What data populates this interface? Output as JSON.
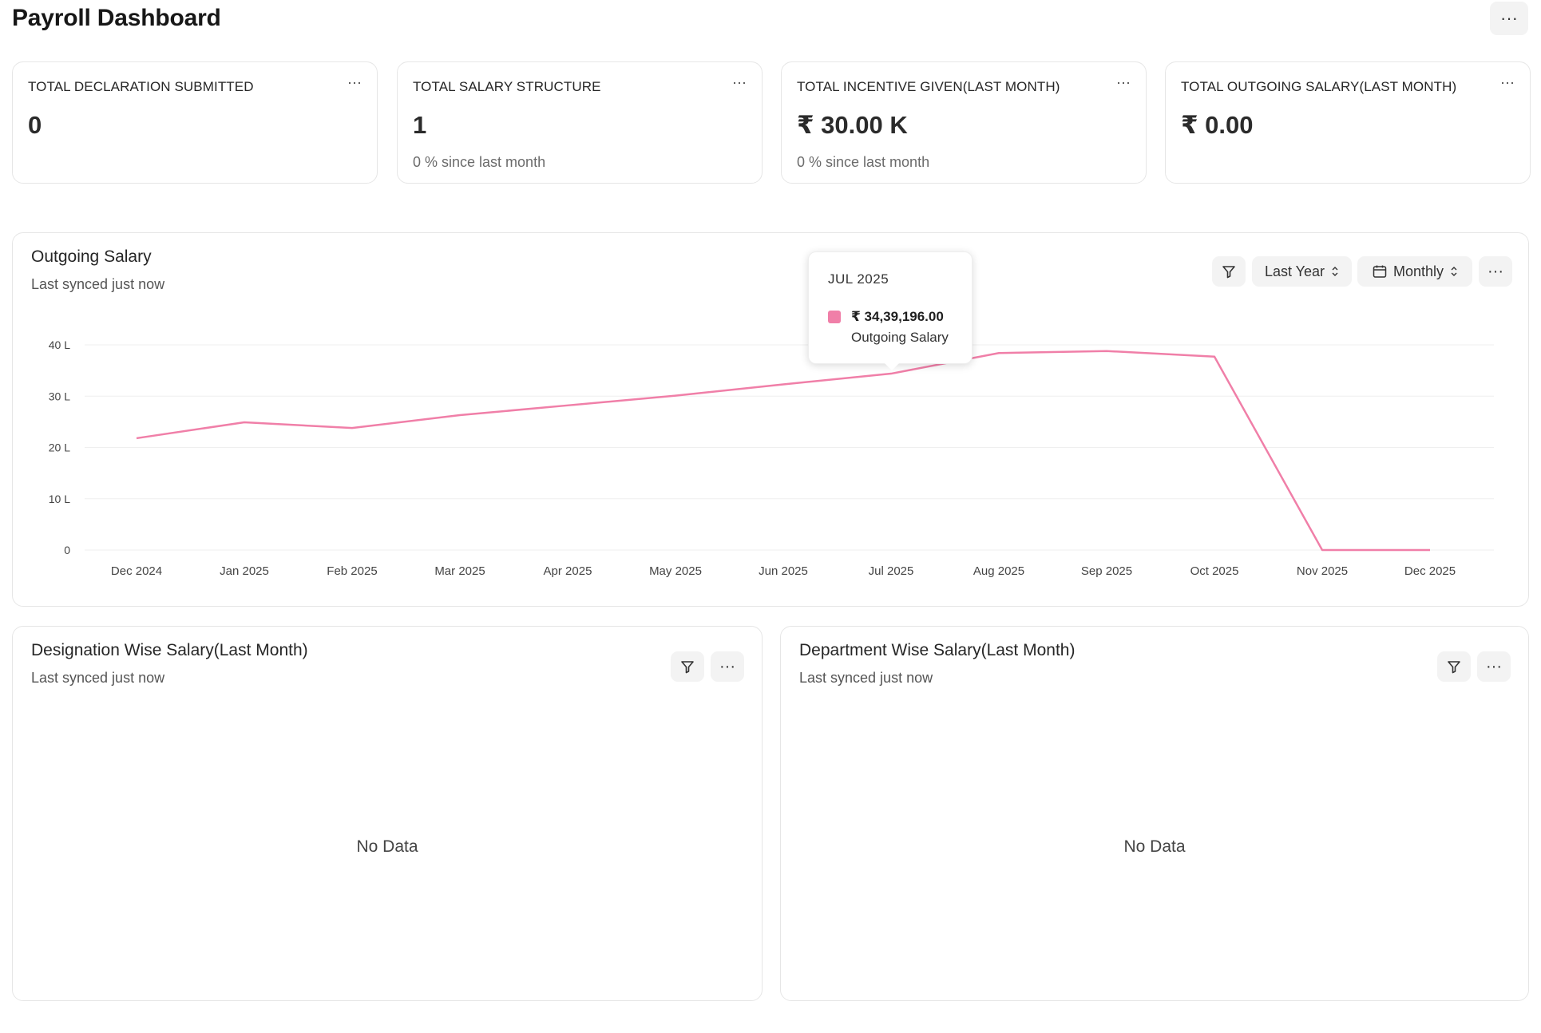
{
  "header": {
    "title": "Payroll Dashboard",
    "menu_label": "···"
  },
  "stats": [
    {
      "label": "TOTAL DECLARATION SUBMITTED",
      "value": "0",
      "sub": ""
    },
    {
      "label": "TOTAL SALARY STRUCTURE",
      "value": "1",
      "sub": "0 % since last month"
    },
    {
      "label": "TOTAL INCENTIVE GIVEN(LAST MONTH)",
      "value": "₹ 30.00 K",
      "sub": "0 % since last month"
    },
    {
      "label": "TOTAL OUTGOING SALARY(LAST MONTH)",
      "value": "₹ 0.00",
      "sub": ""
    }
  ],
  "outgoing": {
    "title": "Outgoing Salary",
    "synced": "Last synced just now",
    "range_label": "Last Year",
    "interval_label": "Monthly",
    "menu_label": "···"
  },
  "tooltip": {
    "title": "JUL 2025",
    "value": "₹ 34,39,196.00",
    "series": "Outgoing Salary"
  },
  "chart_data": {
    "type": "line",
    "categories": [
      "Dec 2024",
      "Jan 2025",
      "Feb 2025",
      "Mar 2025",
      "Apr 2025",
      "May 2025",
      "Jun 2025",
      "Jul 2025",
      "Aug 2025",
      "Sep 2025",
      "Oct 2025",
      "Nov 2025",
      "Dec 2025"
    ],
    "series": [
      {
        "name": "Outgoing Salary",
        "values": [
          21.8,
          24.9,
          23.8,
          26.3,
          28.2,
          30.1,
          32.3,
          34.39,
          38.4,
          38.8,
          37.7,
          0,
          0
        ]
      }
    ],
    "yticks": [
      "0",
      "10 L",
      "20 L",
      "30 L",
      "40 L"
    ],
    "ytick_values": [
      0,
      10,
      20,
      30,
      40
    ],
    "ylim": [
      0,
      40
    ],
    "grid": true,
    "color": "#f07fa8"
  },
  "designation": {
    "title": "Designation Wise Salary(Last Month)",
    "synced": "Last synced just now",
    "empty": "No Data",
    "menu_label": "···"
  },
  "department": {
    "title": "Department Wise Salary(Last Month)",
    "synced": "Last synced just now",
    "empty": "No Data",
    "menu_label": "···"
  },
  "colors": {
    "accent": "#f07fa8",
    "border": "#e6e6e6",
    "button_bg": "#f3f3f3"
  },
  "icons": {
    "filter": "filter-icon",
    "calendar": "calendar-icon",
    "sort": "sort-chevrons-icon"
  }
}
